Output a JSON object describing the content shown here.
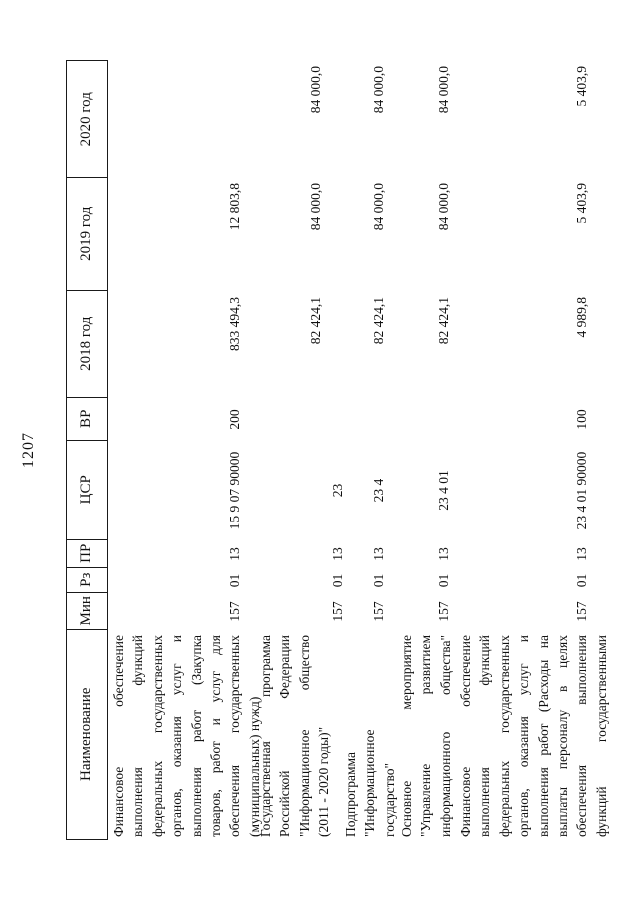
{
  "page": {
    "number": "1207"
  },
  "colors": {
    "ink": "#111111",
    "paper": "#ffffff",
    "border": "#1a1a1a"
  },
  "table": {
    "headers": [
      {
        "label": "Наименование"
      },
      {
        "label": "Мин"
      },
      {
        "label": "Рз"
      },
      {
        "label": "ПР"
      },
      {
        "label": "ЦСР"
      },
      {
        "label": "ВР"
      },
      {
        "label": "2018 год"
      },
      {
        "label": "2019 год"
      },
      {
        "label": "2020 год"
      }
    ],
    "rows": [
      {
        "name_lines": [
          "Финансовое обеспечение",
          "выполнения функций",
          "федеральных государственных",
          "органов, оказания услуг и",
          "выполнения работ (Закупка",
          "товаров, работ и услуг для",
          "обеспечения государственных",
          "(муниципальных) нужд)"
        ],
        "flush": [
          8
        ],
        "min": "157",
        "rz": "01",
        "pr": "13",
        "csr": "15 9 07 90000",
        "vr": "200",
        "y2018": "833 494,3",
        "y2019": "12 803,8",
        "y2020": ""
      },
      {
        "name_lines": [
          "Государственная программа",
          "Российской Федерации",
          "\"Информационное общество",
          "(2011 - 2020 годы)\""
        ],
        "flush": [
          4
        ],
        "min": "157",
        "rz": "01",
        "pr": "13",
        "csr": "23",
        "vr": "",
        "y2018": "82 424,1",
        "y2019": "84 000,0",
        "y2020": "84 000,0"
      },
      {
        "name_lines": [
          "Подпрограмма",
          "\"Информационное",
          "государство\""
        ],
        "flush": [
          1,
          2,
          3
        ],
        "min": "157",
        "rz": "01",
        "pr": "13",
        "csr": "23 4",
        "vr": "",
        "y2018": "82 424,1",
        "y2019": "84 000,0",
        "y2020": "84 000,0"
      },
      {
        "name_lines": [
          "Основное мероприятие",
          "\"Управление развитием",
          "информационного общества\""
        ],
        "flush": [],
        "min": "157",
        "rz": "01",
        "pr": "13",
        "csr": "23 4 01",
        "vr": "",
        "y2018": "82 424,1",
        "y2019": "84 000,0",
        "y2020": "84 000,0"
      },
      {
        "name_lines": [
          "Финансовое обеспечение",
          "выполнения функций",
          "федеральных государственных",
          "органов, оказания услуг и",
          "выполнения работ (Расходы на",
          "выплаты персоналу в целях",
          "обеспечения выполнения",
          "функций государственными"
        ],
        "flush": [],
        "min": "157",
        "rz": "01",
        "pr": "13",
        "csr": "23 4 01 90000",
        "vr": "100",
        "y2018": "4 989,8",
        "y2019": "5 403,9",
        "y2020": "5 403,9"
      }
    ]
  }
}
